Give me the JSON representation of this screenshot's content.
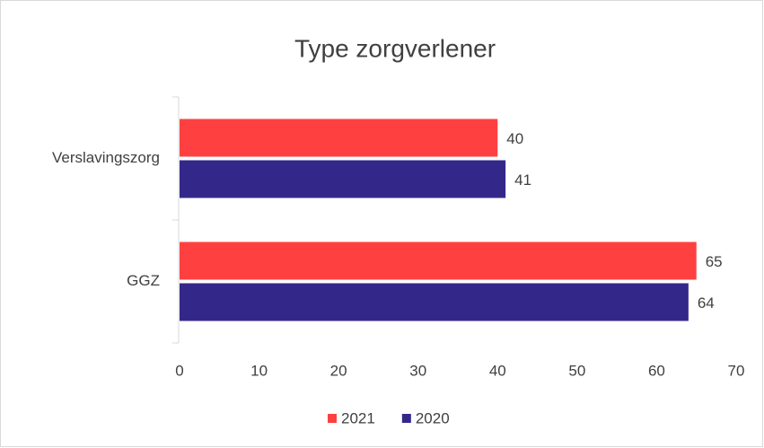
{
  "chart_data": {
    "type": "bar",
    "orientation": "horizontal",
    "title": "Type zorgverlener",
    "categories": [
      "Verslavingszorg",
      "GGZ"
    ],
    "series": [
      {
        "name": "2021",
        "color": "#ff4040",
        "values": [
          40,
          65
        ]
      },
      {
        "name": "2020",
        "color": "#33288a",
        "values": [
          41,
          64
        ]
      }
    ],
    "xlim": [
      0,
      70
    ],
    "xticks": [
      0,
      10,
      20,
      30,
      40,
      50,
      60,
      70
    ],
    "grid": false,
    "legend": "bottom"
  }
}
